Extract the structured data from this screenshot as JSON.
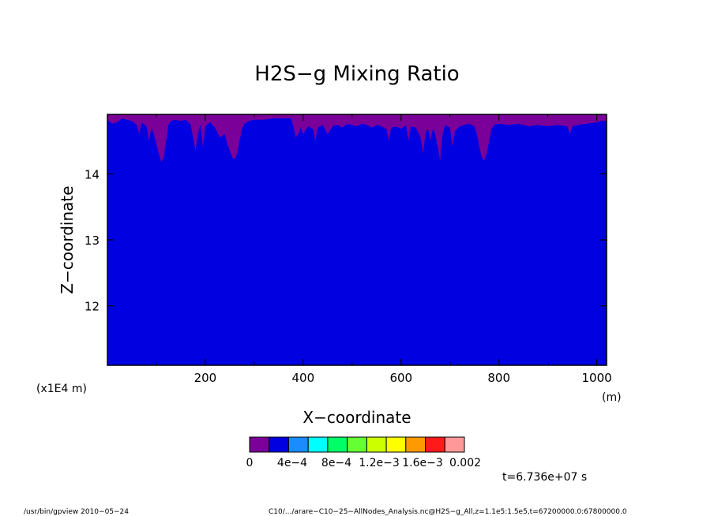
{
  "chart_data": {
    "type": "heatmap",
    "title": "H2S−g Mixing Ratio",
    "xlabel": "X−coordinate",
    "ylabel": "Z−coordinate",
    "x_unit": "(m)",
    "y_multiplier": "(x1E4 m)",
    "xlim": [
      0,
      1020
    ],
    "ylim": [
      11.1,
      14.9
    ],
    "x_ticks": [
      "200",
      "400",
      "600",
      "800",
      "1000"
    ],
    "x_tick_values": [
      200,
      400,
      600,
      800,
      1000
    ],
    "y_ticks": [
      "12",
      "13",
      "14"
    ],
    "y_tick_values": [
      12,
      13,
      14
    ],
    "background_level_color": "#0000e0",
    "top_level_color": "#7b0099",
    "top_boundary_z": [
      [
        0,
        14.82
      ],
      [
        10,
        14.76
      ],
      [
        20,
        14.78
      ],
      [
        30,
        14.84
      ],
      [
        40,
        14.82
      ],
      [
        50,
        14.8
      ],
      [
        60,
        14.74
      ],
      [
        65,
        14.6
      ],
      [
        70,
        14.78
      ],
      [
        80,
        14.72
      ],
      [
        85,
        14.5
      ],
      [
        90,
        14.7
      ],
      [
        95,
        14.6
      ],
      [
        100,
        14.45
      ],
      [
        105,
        14.3
      ],
      [
        110,
        14.18
      ],
      [
        115,
        14.25
      ],
      [
        120,
        14.5
      ],
      [
        125,
        14.75
      ],
      [
        130,
        14.8
      ],
      [
        140,
        14.82
      ],
      [
        150,
        14.8
      ],
      [
        160,
        14.82
      ],
      [
        170,
        14.75
      ],
      [
        175,
        14.55
      ],
      [
        180,
        14.35
      ],
      [
        185,
        14.6
      ],
      [
        190,
        14.75
      ],
      [
        195,
        14.4
      ],
      [
        200,
        14.72
      ],
      [
        210,
        14.78
      ],
      [
        220,
        14.7
      ],
      [
        230,
        14.55
      ],
      [
        240,
        14.6
      ],
      [
        245,
        14.45
      ],
      [
        250,
        14.35
      ],
      [
        255,
        14.25
      ],
      [
        260,
        14.22
      ],
      [
        265,
        14.3
      ],
      [
        270,
        14.5
      ],
      [
        275,
        14.68
      ],
      [
        280,
        14.76
      ],
      [
        290,
        14.8
      ],
      [
        300,
        14.82
      ],
      [
        320,
        14.82
      ],
      [
        340,
        14.84
      ],
      [
        360,
        14.84
      ],
      [
        375,
        14.84
      ],
      [
        380,
        14.72
      ],
      [
        385,
        14.55
      ],
      [
        390,
        14.6
      ],
      [
        395,
        14.7
      ],
      [
        400,
        14.6
      ],
      [
        410,
        14.72
      ],
      [
        420,
        14.68
      ],
      [
        425,
        14.5
      ],
      [
        430,
        14.7
      ],
      [
        440,
        14.74
      ],
      [
        450,
        14.6
      ],
      [
        460,
        14.72
      ],
      [
        470,
        14.74
      ],
      [
        480,
        14.7
      ],
      [
        490,
        14.76
      ],
      [
        500,
        14.74
      ],
      [
        510,
        14.72
      ],
      [
        520,
        14.76
      ],
      [
        530,
        14.74
      ],
      [
        540,
        14.7
      ],
      [
        550,
        14.74
      ],
      [
        560,
        14.72
      ],
      [
        570,
        14.68
      ],
      [
        575,
        14.5
      ],
      [
        580,
        14.7
      ],
      [
        590,
        14.72
      ],
      [
        600,
        14.68
      ],
      [
        610,
        14.74
      ],
      [
        615,
        14.5
      ],
      [
        620,
        14.72
      ],
      [
        630,
        14.7
      ],
      [
        640,
        14.55
      ],
      [
        645,
        14.3
      ],
      [
        650,
        14.6
      ],
      [
        655,
        14.7
      ],
      [
        660,
        14.5
      ],
      [
        665,
        14.68
      ],
      [
        670,
        14.6
      ],
      [
        675,
        14.4
      ],
      [
        680,
        14.2
      ],
      [
        685,
        14.6
      ],
      [
        690,
        14.74
      ],
      [
        700,
        14.7
      ],
      [
        705,
        14.4
      ],
      [
        710,
        14.65
      ],
      [
        720,
        14.72
      ],
      [
        730,
        14.74
      ],
      [
        740,
        14.76
      ],
      [
        750,
        14.72
      ],
      [
        755,
        14.6
      ],
      [
        760,
        14.4
      ],
      [
        765,
        14.25
      ],
      [
        770,
        14.2
      ],
      [
        775,
        14.3
      ],
      [
        780,
        14.5
      ],
      [
        785,
        14.68
      ],
      [
        790,
        14.74
      ],
      [
        800,
        14.76
      ],
      [
        820,
        14.74
      ],
      [
        840,
        14.76
      ],
      [
        860,
        14.72
      ],
      [
        880,
        14.74
      ],
      [
        900,
        14.72
      ],
      [
        920,
        14.74
      ],
      [
        940,
        14.72
      ],
      [
        945,
        14.6
      ],
      [
        950,
        14.72
      ],
      [
        960,
        14.74
      ],
      [
        980,
        14.76
      ],
      [
        1000,
        14.78
      ],
      [
        1010,
        14.8
      ],
      [
        1020,
        14.8
      ]
    ],
    "colorbar": {
      "colors": [
        "#7b0099",
        "#0000e0",
        "#1a8cff",
        "#00ffff",
        "#00ff66",
        "#66ff33",
        "#ccff00",
        "#ffff00",
        "#ff9900",
        "#ff1a1a",
        "#ff9999"
      ],
      "labels": [
        "0",
        "4e−4",
        "8e−4",
        "1.2e−3",
        "1.6e−3",
        "0.002"
      ]
    },
    "time_label": "t=6.736e+07 s"
  },
  "footer": {
    "left": "/usr/bin/gpview   2010−05−24",
    "right": "C10/.../arare−C10−25−AllNodes_Analysis.nc@H2S−g_All,z=1.1e5:1.5e5,t=67200000.0:67800000.0"
  }
}
